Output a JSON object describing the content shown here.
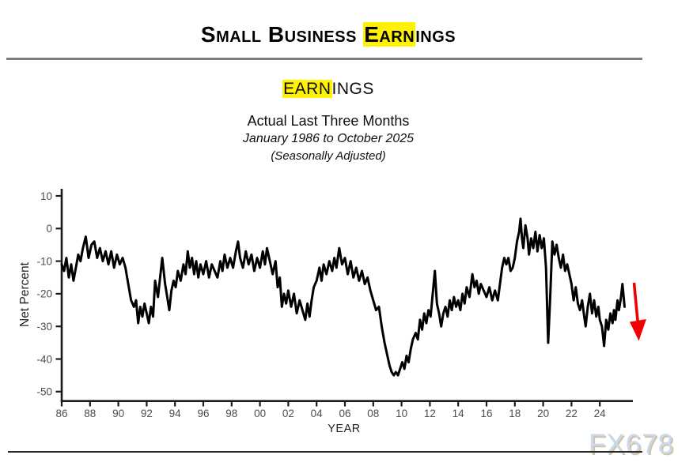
{
  "page": {
    "title": {
      "prefix": "Small Business ",
      "highlight": "Earn",
      "suffix": "ings"
    },
    "watermark": "FX678",
    "colors": {
      "highlight": "#fff200",
      "line": "#000000",
      "arrow": "#f00000",
      "axis": "#1a1a1a",
      "tick_label": "#4d4d4d",
      "rule": "#7d7d7d",
      "watermark_fill": "#c8daee",
      "watermark_shadow": "#d2c3a6"
    }
  },
  "chart_data": {
    "type": "line",
    "title": {
      "highlight": "EARN",
      "suffix": "INGS"
    },
    "subtitle": "Actual Last Three Months",
    "period": "January 1986 to October 2025",
    "note": "(Seasonally Adjusted)",
    "xlabel": "YEAR",
    "ylabel": "Net Percent",
    "ylim": [
      -50,
      10
    ],
    "xlim": [
      1986,
      2026
    ],
    "grid": false,
    "legend": "none",
    "y_ticks": [
      10,
      0,
      -10,
      -20,
      -30,
      -40,
      -50
    ],
    "y_tick_labels": [
      "10",
      "0",
      "-10",
      "-20",
      "-30",
      "-40",
      "-50"
    ],
    "x_ticks": [
      1986,
      1988,
      1990,
      1992,
      1994,
      1996,
      1998,
      2000,
      2002,
      2004,
      2006,
      2008,
      2010,
      2012,
      2014,
      2016,
      2018,
      2020,
      2022,
      2024
    ],
    "x_tick_labels": [
      "86",
      "88",
      "90",
      "92",
      "94",
      "96",
      "98",
      "00",
      "02",
      "04",
      "06",
      "08",
      "10",
      "12",
      "14",
      "16",
      "18",
      "20",
      "22",
      "24"
    ],
    "annotation": {
      "type": "arrow-down",
      "color": "#f00000",
      "meaning": "latest reading declining"
    },
    "series": [
      {
        "name": "Net percent, actual earnings change last three months (seasonally adjusted)",
        "points": [
          [
            1986.0,
            -11
          ],
          [
            1986.17,
            -13
          ],
          [
            1986.33,
            -9
          ],
          [
            1986.5,
            -15
          ],
          [
            1986.67,
            -11
          ],
          [
            1986.83,
            -16
          ],
          [
            1987.0,
            -12
          ],
          [
            1987.17,
            -8
          ],
          [
            1987.33,
            -10
          ],
          [
            1987.5,
            -6
          ],
          [
            1987.7,
            -2.5
          ],
          [
            1987.9,
            -9
          ],
          [
            1988.1,
            -5
          ],
          [
            1988.3,
            -4
          ],
          [
            1988.5,
            -9
          ],
          [
            1988.7,
            -6
          ],
          [
            1988.9,
            -10
          ],
          [
            1989.1,
            -7
          ],
          [
            1989.3,
            -11
          ],
          [
            1989.5,
            -7
          ],
          [
            1989.7,
            -12
          ],
          [
            1989.9,
            -8
          ],
          [
            1990.1,
            -11
          ],
          [
            1990.3,
            -9
          ],
          [
            1990.5,
            -12
          ],
          [
            1990.7,
            -17
          ],
          [
            1990.9,
            -22
          ],
          [
            1991.1,
            -24
          ],
          [
            1991.25,
            -22
          ],
          [
            1991.4,
            -29
          ],
          [
            1991.55,
            -24
          ],
          [
            1991.7,
            -27
          ],
          [
            1991.85,
            -23
          ],
          [
            1992.0,
            -26
          ],
          [
            1992.15,
            -29
          ],
          [
            1992.3,
            -24
          ],
          [
            1992.45,
            -27
          ],
          [
            1992.6,
            -16
          ],
          [
            1992.8,
            -21
          ],
          [
            1993.0,
            -13
          ],
          [
            1993.1,
            -9
          ],
          [
            1993.3,
            -17
          ],
          [
            1993.45,
            -21
          ],
          [
            1993.6,
            -25
          ],
          [
            1993.75,
            -19
          ],
          [
            1993.9,
            -16
          ],
          [
            1994.05,
            -18
          ],
          [
            1994.2,
            -13
          ],
          [
            1994.4,
            -16
          ],
          [
            1994.6,
            -11
          ],
          [
            1994.75,
            -14
          ],
          [
            1994.9,
            -7
          ],
          [
            1995.05,
            -12
          ],
          [
            1995.2,
            -9
          ],
          [
            1995.35,
            -14
          ],
          [
            1995.5,
            -10
          ],
          [
            1995.65,
            -15
          ],
          [
            1995.8,
            -11
          ],
          [
            1996.0,
            -14
          ],
          [
            1996.2,
            -10
          ],
          [
            1996.4,
            -15
          ],
          [
            1996.6,
            -11
          ],
          [
            1996.8,
            -13
          ],
          [
            1997.0,
            -15
          ],
          [
            1997.2,
            -10
          ],
          [
            1997.35,
            -13
          ],
          [
            1997.5,
            -8
          ],
          [
            1997.7,
            -12
          ],
          [
            1997.9,
            -9
          ],
          [
            1998.1,
            -12
          ],
          [
            1998.3,
            -7
          ],
          [
            1998.45,
            -4
          ],
          [
            1998.6,
            -9
          ],
          [
            1998.8,
            -12
          ],
          [
            1999.0,
            -7
          ],
          [
            1999.2,
            -11
          ],
          [
            1999.4,
            -8
          ],
          [
            1999.6,
            -13
          ],
          [
            1999.8,
            -9
          ],
          [
            2000.0,
            -12
          ],
          [
            2000.2,
            -7
          ],
          [
            2000.35,
            -11
          ],
          [
            2000.5,
            -6
          ],
          [
            2000.7,
            -10
          ],
          [
            2000.9,
            -14
          ],
          [
            2001.1,
            -10
          ],
          [
            2001.25,
            -18
          ],
          [
            2001.4,
            -15
          ],
          [
            2001.55,
            -24
          ],
          [
            2001.7,
            -20
          ],
          [
            2001.85,
            -23
          ],
          [
            2002.0,
            -19
          ],
          [
            2002.2,
            -24
          ],
          [
            2002.4,
            -20
          ],
          [
            2002.6,
            -26
          ],
          [
            2002.8,
            -22
          ],
          [
            2003.0,
            -25
          ],
          [
            2003.2,
            -28
          ],
          [
            2003.35,
            -23
          ],
          [
            2003.5,
            -27
          ],
          [
            2003.65,
            -22
          ],
          [
            2003.8,
            -18
          ],
          [
            2004.0,
            -16
          ],
          [
            2004.2,
            -12
          ],
          [
            2004.35,
            -16
          ],
          [
            2004.5,
            -11
          ],
          [
            2004.7,
            -14
          ],
          [
            2004.9,
            -10
          ],
          [
            2005.1,
            -13
          ],
          [
            2005.25,
            -9
          ],
          [
            2005.4,
            -12
          ],
          [
            2005.6,
            -6
          ],
          [
            2005.8,
            -11
          ],
          [
            2006.0,
            -9
          ],
          [
            2006.2,
            -14
          ],
          [
            2006.4,
            -10
          ],
          [
            2006.6,
            -15
          ],
          [
            2006.8,
            -12
          ],
          [
            2007.0,
            -16
          ],
          [
            2007.2,
            -13
          ],
          [
            2007.4,
            -17
          ],
          [
            2007.6,
            -15
          ],
          [
            2007.8,
            -19
          ],
          [
            2008.0,
            -22
          ],
          [
            2008.2,
            -25
          ],
          [
            2008.4,
            -24
          ],
          [
            2008.6,
            -30
          ],
          [
            2008.8,
            -35
          ],
          [
            2009.0,
            -39
          ],
          [
            2009.15,
            -42
          ],
          [
            2009.3,
            -44
          ],
          [
            2009.45,
            -45
          ],
          [
            2009.6,
            -44
          ],
          [
            2009.75,
            -45
          ],
          [
            2009.9,
            -43
          ],
          [
            2010.05,
            -41
          ],
          [
            2010.2,
            -43
          ],
          [
            2010.35,
            -39
          ],
          [
            2010.5,
            -41
          ],
          [
            2010.65,
            -37
          ],
          [
            2010.8,
            -34
          ],
          [
            2011.0,
            -32
          ],
          [
            2011.15,
            -34
          ],
          [
            2011.3,
            -28
          ],
          [
            2011.45,
            -31
          ],
          [
            2011.6,
            -26
          ],
          [
            2011.75,
            -29
          ],
          [
            2011.9,
            -25
          ],
          [
            2012.05,
            -27
          ],
          [
            2012.2,
            -20
          ],
          [
            2012.35,
            -13
          ],
          [
            2012.5,
            -23
          ],
          [
            2012.65,
            -26
          ],
          [
            2012.8,
            -30
          ],
          [
            2012.95,
            -26
          ],
          [
            2013.1,
            -24
          ],
          [
            2013.25,
            -27
          ],
          [
            2013.4,
            -22
          ],
          [
            2013.55,
            -25
          ],
          [
            2013.7,
            -21
          ],
          [
            2013.85,
            -24
          ],
          [
            2014.0,
            -22
          ],
          [
            2014.15,
            -25
          ],
          [
            2014.3,
            -20
          ],
          [
            2014.45,
            -23
          ],
          [
            2014.6,
            -18
          ],
          [
            2014.8,
            -21
          ],
          [
            2015.0,
            -14
          ],
          [
            2015.15,
            -18
          ],
          [
            2015.3,
            -16
          ],
          [
            2015.45,
            -20
          ],
          [
            2015.6,
            -17
          ],
          [
            2015.8,
            -19
          ],
          [
            2016.0,
            -21
          ],
          [
            2016.2,
            -18
          ],
          [
            2016.4,
            -22
          ],
          [
            2016.6,
            -19
          ],
          [
            2016.8,
            -22
          ],
          [
            2016.95,
            -17
          ],
          [
            2017.1,
            -12
          ],
          [
            2017.25,
            -9
          ],
          [
            2017.4,
            -11
          ],
          [
            2017.55,
            -9
          ],
          [
            2017.7,
            -13
          ],
          [
            2017.85,
            -12
          ],
          [
            2018.0,
            -9
          ],
          [
            2018.15,
            -4
          ],
          [
            2018.3,
            -1
          ],
          [
            2018.4,
            3
          ],
          [
            2018.5,
            -3
          ],
          [
            2018.6,
            -6
          ],
          [
            2018.75,
            1
          ],
          [
            2018.9,
            -3
          ],
          [
            2019.0,
            -8
          ],
          [
            2019.15,
            -3
          ],
          [
            2019.3,
            -6
          ],
          [
            2019.45,
            -1
          ],
          [
            2019.6,
            -7
          ],
          [
            2019.75,
            -2
          ],
          [
            2019.9,
            -6
          ],
          [
            2020.05,
            -3
          ],
          [
            2020.2,
            -12
          ],
          [
            2020.35,
            -35
          ],
          [
            2020.5,
            -21
          ],
          [
            2020.65,
            -4
          ],
          [
            2020.8,
            -8
          ],
          [
            2020.95,
            -5
          ],
          [
            2021.1,
            -9
          ],
          [
            2021.25,
            -12
          ],
          [
            2021.4,
            -8
          ],
          [
            2021.55,
            -13
          ],
          [
            2021.7,
            -11
          ],
          [
            2021.85,
            -14
          ],
          [
            2022.0,
            -17
          ],
          [
            2022.15,
            -22
          ],
          [
            2022.3,
            -18
          ],
          [
            2022.45,
            -23
          ],
          [
            2022.6,
            -25
          ],
          [
            2022.75,
            -22
          ],
          [
            2022.9,
            -27
          ],
          [
            2023.0,
            -30
          ],
          [
            2023.15,
            -24
          ],
          [
            2023.3,
            -20
          ],
          [
            2023.45,
            -26
          ],
          [
            2023.6,
            -22
          ],
          [
            2023.75,
            -27
          ],
          [
            2023.9,
            -24
          ],
          [
            2024.0,
            -28
          ],
          [
            2024.15,
            -30
          ],
          [
            2024.3,
            -36
          ],
          [
            2024.45,
            -28
          ],
          [
            2024.6,
            -31
          ],
          [
            2024.75,
            -26
          ],
          [
            2024.9,
            -29
          ],
          [
            2025.0,
            -25
          ],
          [
            2025.1,
            -28
          ],
          [
            2025.25,
            -22
          ],
          [
            2025.35,
            -25
          ],
          [
            2025.5,
            -21
          ],
          [
            2025.6,
            -17
          ],
          [
            2025.75,
            -24
          ]
        ]
      }
    ]
  }
}
